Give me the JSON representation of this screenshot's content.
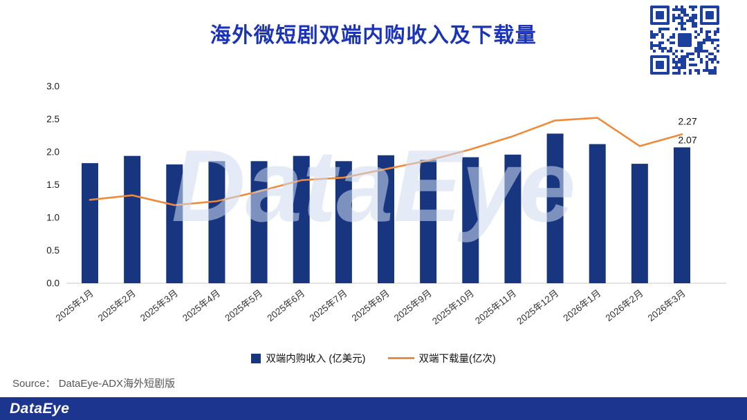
{
  "title": "海外微短剧双端内购收入及下载量",
  "watermark": "DataEye",
  "source": "Source： DataEye-ADX海外短剧版",
  "footer": {
    "logo": "DataEye"
  },
  "colors": {
    "title": "#1b33b8",
    "bar": "#17367F",
    "line": "#ED8A3C",
    "watermark": "#cfdcf0",
    "footer": "#1c3690",
    "qr": "#1d3f9e",
    "axis": "#c9c9c9",
    "tick_text": "#1a1a1a"
  },
  "chart_data": {
    "type": "combo",
    "title": "海外微短剧双端内购收入及下载量",
    "categories": [
      "2025年1月",
      "2025年2月",
      "2025年3月",
      "2025年4月",
      "2025年5月",
      "2025年6月",
      "2025年7月",
      "2025年8月",
      "2025年9月",
      "2025年10月",
      "2025年11月",
      "2025年12月",
      "2026年1月",
      "2026年2月",
      "2026年3月"
    ],
    "series": [
      {
        "name": "双端内购收入 (亿美元)",
        "type": "bar",
        "color": "#17367F",
        "values": [
          1.83,
          1.94,
          1.81,
          1.86,
          1.86,
          1.94,
          1.86,
          1.95,
          1.88,
          1.92,
          1.96,
          2.28,
          2.12,
          1.82,
          2.07
        ]
      },
      {
        "name": "双端下载量(亿次)",
        "type": "line",
        "color": "#ED8A3C",
        "values": [
          1.27,
          1.34,
          1.19,
          1.25,
          1.4,
          1.57,
          1.61,
          1.74,
          1.87,
          2.04,
          2.24,
          2.48,
          2.52,
          2.09,
          2.27
        ]
      }
    ],
    "ylim": [
      0,
      3.0
    ],
    "yticks": [
      0.0,
      0.5,
      1.0,
      1.5,
      2.0,
      2.5,
      3.0
    ],
    "grid": false,
    "legend_position": "bottom",
    "annotations": [
      {
        "text": "2.27",
        "series": 1,
        "index": 14
      },
      {
        "text": "2.07",
        "series": 0,
        "index": 14
      }
    ]
  }
}
